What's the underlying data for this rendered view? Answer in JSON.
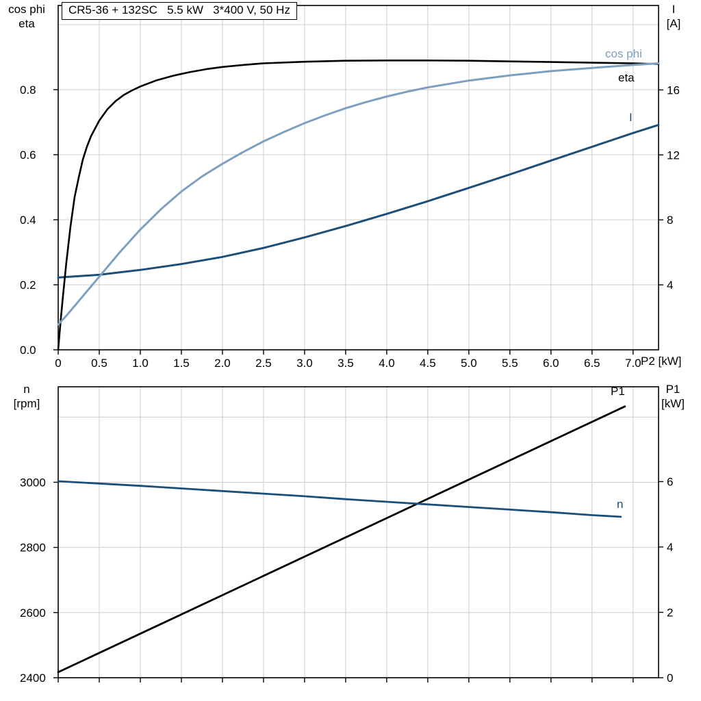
{
  "header": {
    "title_box": "CR5-36 + 132SC   5.5 kW   3*400 V, 50 Hz"
  },
  "colors": {
    "black_curve": "#000000",
    "cos_phi_curve": "#7d9fc0",
    "dark_blue_curve": "#1b4e78",
    "grid": "#cccccc",
    "frame": "#000000",
    "background": "#ffffff"
  },
  "top_chart": {
    "left_axis_title": [
      "cos phi",
      "eta"
    ],
    "right_axis_title": [
      "I",
      "[A]"
    ],
    "x_axis_title": "P2 [kW]",
    "curve_label_cos_phi": "cos phi",
    "curve_label_eta": "eta",
    "curve_label_current": "I"
  },
  "bottom_chart": {
    "left_axis_title": [
      "n",
      "[rpm]"
    ],
    "right_axis_title": [
      "P1",
      "[kW]"
    ],
    "curve_label_p1": "P1",
    "curve_label_n": "n"
  },
  "chart_data": [
    {
      "type": "line",
      "title": "CR5-36 + 132SC 5.5 kW 3*400 V, 50 Hz",
      "xlabel": "P2 [kW]",
      "xlim": [
        0,
        7.31
      ],
      "x_ticks": [
        0,
        0.5,
        1,
        1.5,
        2,
        2.5,
        3,
        3.5,
        4,
        4.5,
        5,
        5.5,
        6,
        6.5,
        7
      ],
      "x_tick_labels": [
        "0",
        "0.5",
        "1.0",
        "1.5",
        "2.0",
        "2.5",
        "3.0",
        "3.5",
        "4.0",
        "4.5",
        "5.0",
        "5.5",
        "6.0",
        "6.5",
        "7.0"
      ],
      "x_grid": [
        0.5,
        1,
        1.5,
        2,
        2.5,
        3,
        3.5,
        4,
        4.5,
        5,
        5.5,
        6,
        6.5,
        7
      ],
      "grid_on": true,
      "left_axis": {
        "label": "cos phi / eta",
        "lim": [
          0,
          1.059
        ],
        "ticks": [
          0,
          0.2,
          0.4,
          0.6,
          0.8
        ],
        "tick_labels": [
          "0.0",
          "0.2",
          "0.4",
          "0.6",
          "0.8"
        ],
        "grid": [
          0.2,
          0.4,
          0.6,
          0.8,
          1.0
        ]
      },
      "right_axis": {
        "label": "I [A]",
        "lim": [
          0,
          21.2
        ],
        "ticks": [
          4,
          8,
          12,
          16
        ],
        "tick_labels": [
          "4",
          "8",
          "12",
          "16"
        ]
      },
      "series": [
        {
          "id": "current",
          "name": "I",
          "axis": "right",
          "color": "#1b4e78",
          "width": 3,
          "x": [
            0,
            0.5,
            1.0,
            1.5,
            2.0,
            2.5,
            3.0,
            3.5,
            4.0,
            4.5,
            5.0,
            5.5,
            6.0,
            6.5,
            7.0,
            7.31
          ],
          "y": [
            4.45,
            4.62,
            4.92,
            5.28,
            5.72,
            6.27,
            6.92,
            7.62,
            8.37,
            9.15,
            9.97,
            10.8,
            11.65,
            12.5,
            13.35,
            13.85
          ]
        },
        {
          "id": "eta",
          "name": "eta",
          "axis": "left",
          "color": "#000000",
          "width": 2.6,
          "x": [
            0,
            0.03,
            0.06,
            0.1,
            0.15,
            0.2,
            0.25,
            0.3,
            0.35,
            0.4,
            0.5,
            0.6,
            0.7,
            0.8,
            0.9,
            1.0,
            1.2,
            1.4,
            1.6,
            1.8,
            2.0,
            2.25,
            2.5,
            3.0,
            3.5,
            4.0,
            4.5,
            5.0,
            5.5,
            6.0,
            6.5,
            7.0,
            7.31
          ],
          "y": [
            0,
            0.09,
            0.17,
            0.27,
            0.38,
            0.47,
            0.53,
            0.585,
            0.625,
            0.657,
            0.705,
            0.74,
            0.765,
            0.784,
            0.798,
            0.81,
            0.829,
            0.843,
            0.854,
            0.863,
            0.87,
            0.876,
            0.881,
            0.886,
            0.889,
            0.89,
            0.89,
            0.889,
            0.887,
            0.885,
            0.883,
            0.881,
            0.879
          ]
        },
        {
          "id": "cos-phi",
          "name": "cos phi",
          "axis": "left",
          "color": "#7d9fc0",
          "width": 3,
          "x": [
            0,
            0.1,
            0.25,
            0.4,
            0.5,
            0.75,
            1.0,
            1.25,
            1.5,
            1.75,
            2.0,
            2.25,
            2.5,
            2.75,
            3.0,
            3.25,
            3.5,
            3.75,
            4.0,
            4.25,
            4.5,
            5.0,
            5.5,
            6.0,
            6.5,
            7.0,
            7.31
          ],
          "y": [
            0.078,
            0.105,
            0.15,
            0.195,
            0.225,
            0.3,
            0.37,
            0.432,
            0.487,
            0.533,
            0.572,
            0.608,
            0.641,
            0.67,
            0.697,
            0.721,
            0.743,
            0.762,
            0.779,
            0.794,
            0.807,
            0.828,
            0.844,
            0.857,
            0.867,
            0.876,
            0.881
          ]
        }
      ]
    },
    {
      "type": "line",
      "title": "",
      "xlabel": "",
      "xlim": [
        0,
        7.31
      ],
      "x_ticks": [
        0,
        0.5,
        1,
        1.5,
        2,
        2.5,
        3,
        3.5,
        4,
        4.5,
        5,
        5.5,
        6,
        6.5,
        7
      ],
      "x_tick_labels": [],
      "x_grid": [
        0.5,
        1,
        1.5,
        2,
        2.5,
        3,
        3.5,
        4,
        4.5,
        5,
        5.5,
        6,
        6.5,
        7
      ],
      "grid_on": true,
      "left_axis": {
        "label": "n [rpm]",
        "lim": [
          2400,
          3293
        ],
        "ticks": [
          2400,
          2600,
          2800,
          3000
        ],
        "tick_labels": [
          "2400",
          "2600",
          "2800",
          "3000"
        ],
        "grid": [
          2600,
          2800,
          3000,
          3200
        ]
      },
      "right_axis": {
        "label": "P1 [kW]",
        "lim": [
          0,
          8.9
        ],
        "ticks": [
          0,
          2,
          4,
          6
        ],
        "tick_labels": [
          "0",
          "2",
          "4",
          "6"
        ]
      },
      "series": [
        {
          "id": "p1",
          "name": "P1",
          "axis": "right",
          "color": "#000000",
          "width": 2.8,
          "x": [
            0,
            6.9
          ],
          "y": [
            0.17,
            8.3
          ]
        },
        {
          "id": "n",
          "name": "n",
          "axis": "left",
          "color": "#1b4e78",
          "width": 2.8,
          "x": [
            0,
            0.5,
            1,
            1.5,
            2,
            2.5,
            3,
            3.5,
            4,
            4.5,
            5,
            5.5,
            6,
            6.5,
            6.85
          ],
          "y": [
            3003,
            2996,
            2989,
            2981,
            2973,
            2965,
            2957,
            2948,
            2940,
            2932,
            2924,
            2916,
            2908,
            2899,
            2894
          ]
        }
      ]
    }
  ]
}
